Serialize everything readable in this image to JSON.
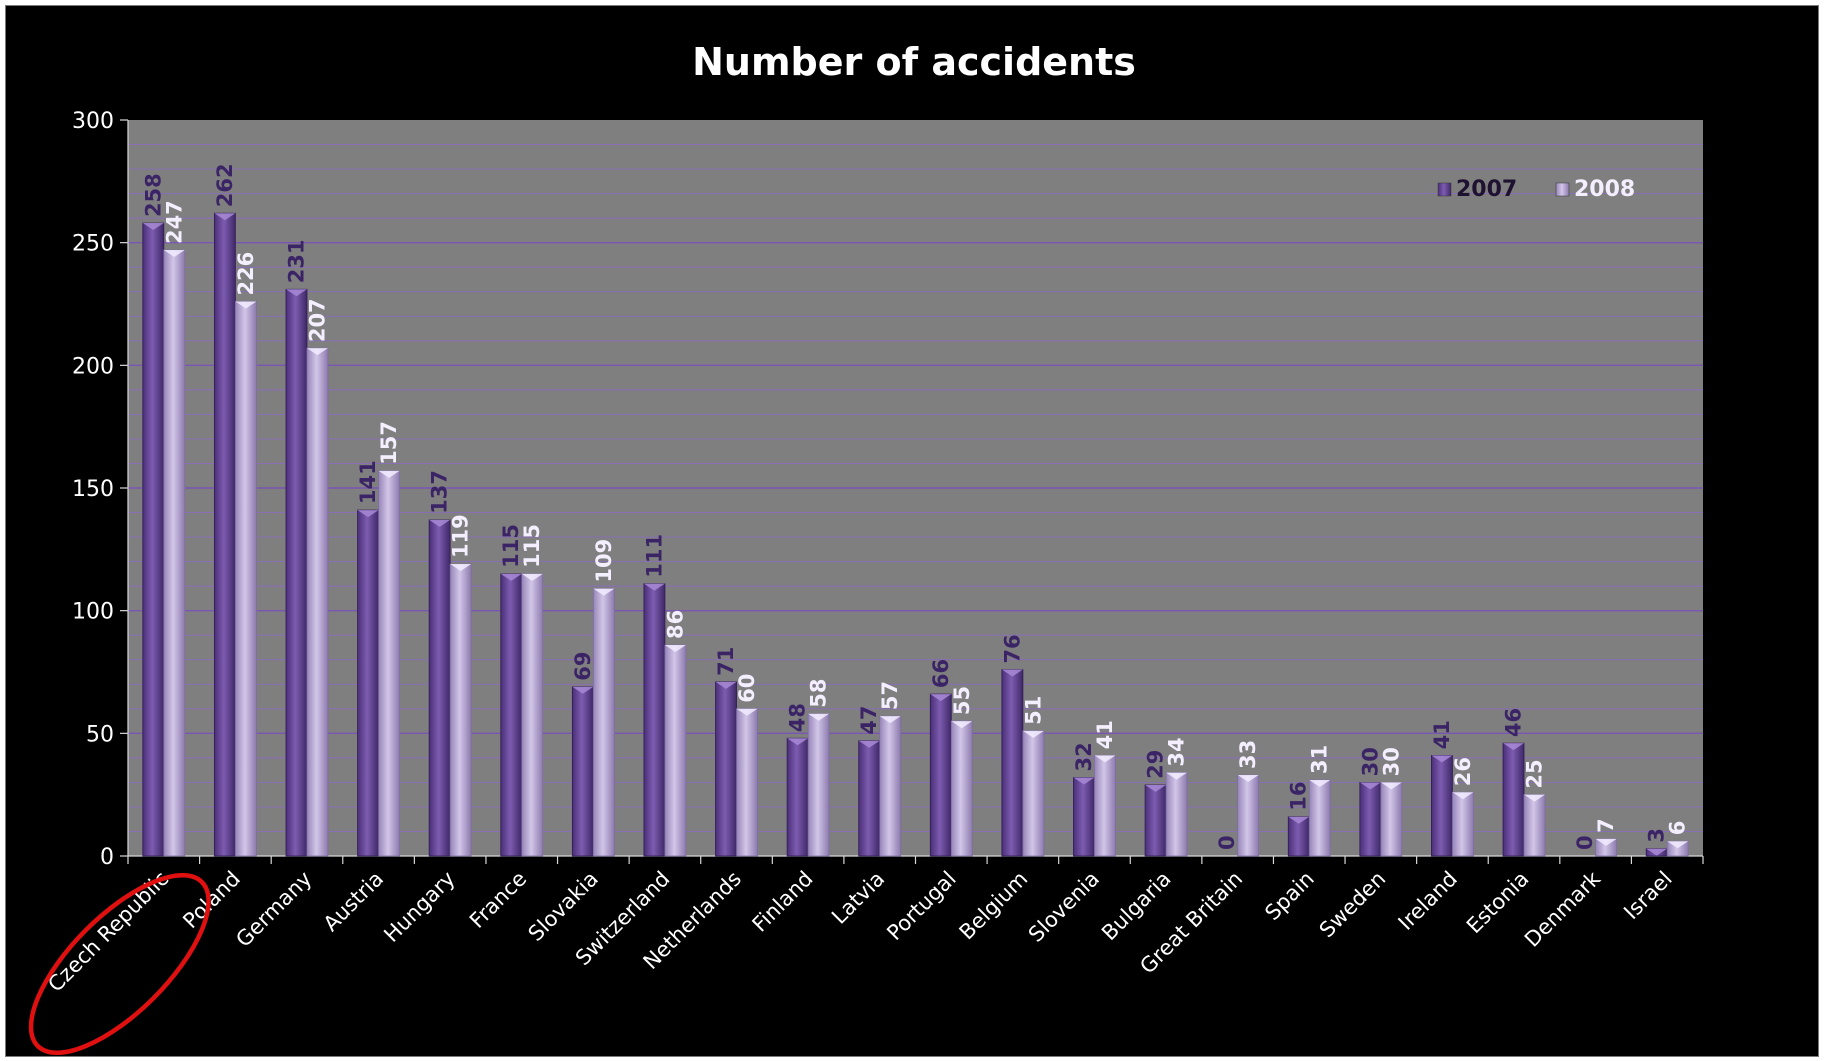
{
  "chart_data": {
    "type": "bar",
    "title": "Number of accidents",
    "xlabel": "",
    "ylabel": "",
    "ylim": [
      0,
      300
    ],
    "yticks": [
      0,
      50,
      100,
      150,
      200,
      250,
      300
    ],
    "grid": true,
    "legend_position": "top-right",
    "categories": [
      "Czech Republic",
      "Poland",
      "Germany",
      "Austria",
      "Hungary",
      "France",
      "Slovakia",
      "Switzerland",
      "Netherlands",
      "Finland",
      "Latvia",
      "Portugal",
      "Belgium",
      "Slovenia",
      "Bulgaria",
      "Great Britain",
      "Spain",
      "Sweden",
      "Ireland",
      "Estonia",
      "Denmark",
      "Israel"
    ],
    "series": [
      {
        "name": "2007",
        "color": "#6b4a9a",
        "values": [
          258,
          262,
          231,
          141,
          137,
          115,
          69,
          111,
          71,
          48,
          47,
          66,
          76,
          32,
          29,
          0,
          16,
          30,
          41,
          46,
          0,
          3
        ]
      },
      {
        "name": "2008",
        "color": "#b3a2d2",
        "values": [
          247,
          226,
          207,
          157,
          119,
          115,
          109,
          86,
          60,
          58,
          57,
          55,
          51,
          41,
          34,
          33,
          31,
          30,
          26,
          25,
          7,
          6
        ]
      }
    ],
    "highlighted_category": "Czech Republic",
    "highlight_color": "#e01010"
  }
}
